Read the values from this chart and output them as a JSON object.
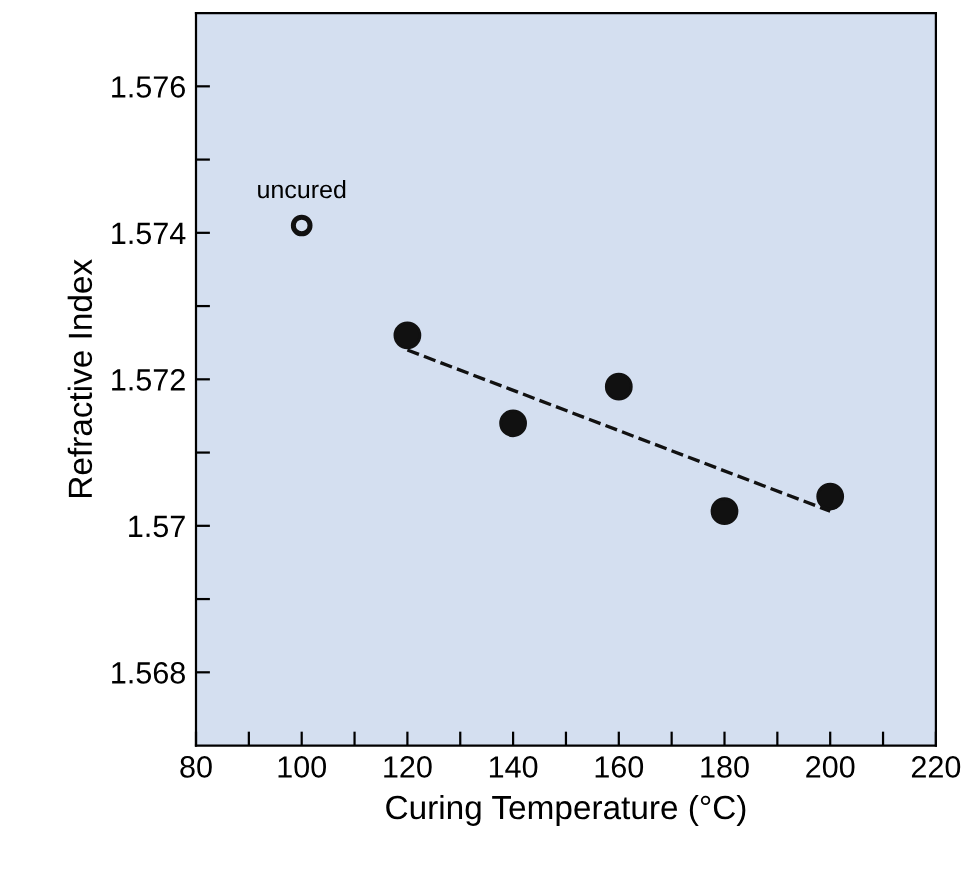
{
  "chart_data": {
    "type": "scatter",
    "xlabel": "Curing Temperature (°C)",
    "ylabel": "Refractive Index",
    "xlim": [
      80,
      220
    ],
    "ylim": [
      1.567,
      1.577
    ],
    "xticks": [
      80,
      {
        "value": 90,
        "label": null
      },
      100,
      {
        "value": 110,
        "label": null
      },
      120,
      {
        "value": 130,
        "label": null
      },
      140,
      {
        "value": 150,
        "label": null
      },
      160,
      {
        "value": 170,
        "label": null
      },
      180,
      {
        "value": 190,
        "label": null
      },
      200,
      {
        "value": 210,
        "label": null
      },
      220
    ],
    "yticks": [
      {
        "value": 1.568,
        "label": "1.568"
      },
      {
        "value": 1.569,
        "label": null
      },
      {
        "value": 1.57,
        "label": "1.57"
      },
      {
        "value": 1.571,
        "label": null
      },
      {
        "value": 1.572,
        "label": "1.572"
      },
      {
        "value": 1.573,
        "label": null
      },
      {
        "value": 1.574,
        "label": "1.574"
      },
      {
        "value": 1.575,
        "label": null
      },
      {
        "value": 1.576,
        "label": "1.576"
      }
    ],
    "grid": false,
    "marker": "circle",
    "series": [
      {
        "type": "scatter",
        "color": "#111111",
        "x": [
          100
        ],
        "values": [
          1.5741
        ]
      },
      {
        "color": "#111111",
        "x": [
          120,
          140,
          160,
          180,
          200
        ],
        "values": [
          1.5726,
          1.5714,
          1.5719,
          1.5702,
          1.5704
        ]
      },
      {
        "type": "line",
        "color": "#111111",
        "line_style": "dashed",
        "marker": "none",
        "x": [
          120,
          200
        ],
        "values": [
          1.5724,
          1.5702
        ]
      }
    ],
    "annotations": [
      {
        "text": "uncured",
        "x": 100,
        "y": 1.5741
      }
    ]
  }
}
